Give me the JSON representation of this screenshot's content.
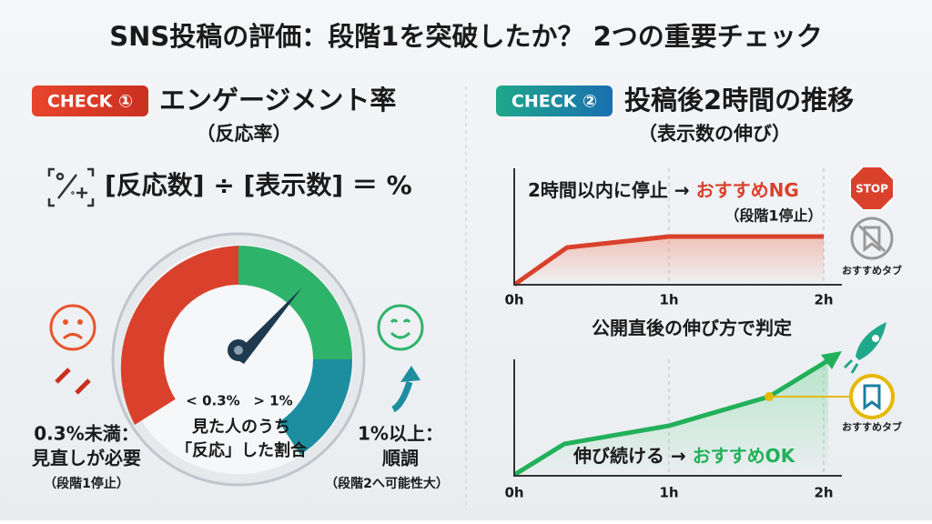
{
  "title": "SNS投稿の評価：段階1を突破したか？ 2つの重要チェック",
  "check1": {
    "badge": "CHECK ①",
    "heading": "エンゲージメント率",
    "subheading": "（反応率）",
    "formula": "[反応数] ÷ [表示数] ＝ %",
    "gauge": {
      "low_label": "< 0.3%",
      "high_label": "> 1%",
      "caption": [
        "見た人のうち",
        "「反応」した割合"
      ]
    },
    "low": {
      "title": "0.3%未満：",
      "text": "見直しが必要",
      "note": "（段階1停止）"
    },
    "high": {
      "title": "1%以上：",
      "text": "順調",
      "note": "（段階2へ可能性大）"
    }
  },
  "check2": {
    "badge": "CHECK ②",
    "heading": "投稿後2時間の推移",
    "subheading": "（表示数の伸び）",
    "chart1": {
      "label": "2時間以内に停止 → ",
      "result": "おすすめNG",
      "note": "（段階1停止）",
      "sign": "STOP",
      "tab": "おすすめタブ",
      "axis": [
        "0h",
        "1h",
        "2h"
      ]
    },
    "middle": "公開直後の伸び方で判定",
    "chart2": {
      "label": "伸び続ける → ",
      "result": "おすすめOK",
      "tab": "おすすめタブ",
      "axis": [
        "0h",
        "1h",
        "2h"
      ]
    }
  }
}
